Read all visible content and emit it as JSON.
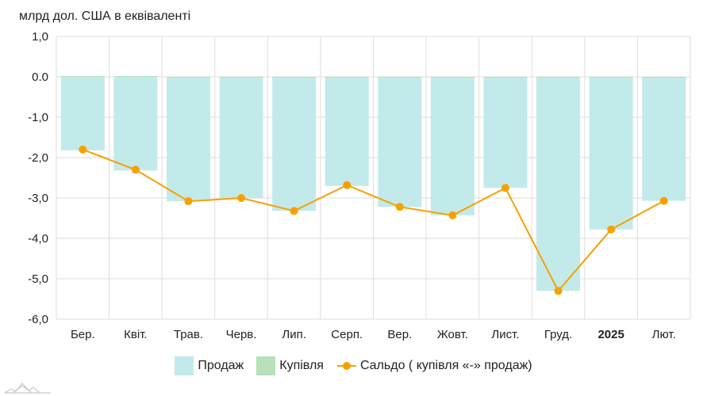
{
  "unit_label": "млрд дол. США в еквіваленті",
  "colors": {
    "sales": "#c3eaea",
    "purchases": "#b7e1bb",
    "balance": "#f7a100",
    "grid": "#dddddd",
    "logo": "#c8c8c8"
  },
  "chart_data": {
    "type": "bar",
    "categories": [
      "Бер.",
      "Квіт.",
      "Трав.",
      "Черв.",
      "Лип.",
      "Серп.",
      "Вер.",
      "Жовт.",
      "Лист.",
      "Груд.",
      "2025",
      "Лют."
    ],
    "bold_categories": [
      "2025"
    ],
    "ylim": [
      -6,
      1
    ],
    "yticks": [
      1,
      0,
      -1,
      -2,
      -3,
      -4,
      -5,
      -6
    ],
    "ytick_labels": [
      "1,0",
      "0.0",
      "-1,0",
      "-2,0",
      "-3,0",
      "-4,0",
      "-5,0",
      "-6,0"
    ],
    "series": [
      {
        "name": "Продаж",
        "type": "bar",
        "values": [
          -1.82,
          -2.32,
          -3.08,
          -3.0,
          -3.32,
          -2.7,
          -3.22,
          -3.43,
          -2.75,
          -5.3,
          -3.78,
          -3.07
        ]
      },
      {
        "name": "Купівля",
        "type": "bar",
        "values": [
          0.02,
          0.02,
          0.0,
          0.0,
          0.0,
          0.0,
          0.0,
          0.0,
          0.0,
          0.0,
          0.0,
          0.0
        ]
      },
      {
        "name": "Сальдо ( купівля «-» продаж)",
        "type": "line",
        "values": [
          -1.8,
          -2.3,
          -3.08,
          -3.0,
          -3.32,
          -2.68,
          -3.22,
          -3.43,
          -2.75,
          -5.3,
          -3.78,
          -3.07
        ]
      }
    ],
    "grid": true,
    "legend_position": "bottom"
  }
}
